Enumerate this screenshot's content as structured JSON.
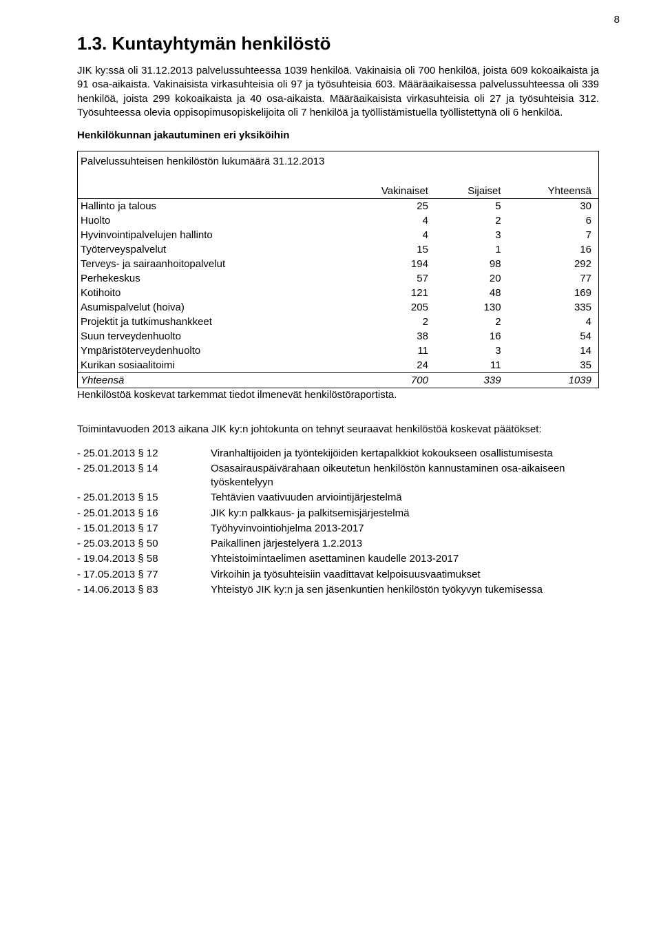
{
  "page_number": "8",
  "heading": "1.3. Kuntayhtymän henkilöstö",
  "paragraphs": {
    "p1": "JIK ky:ssä oli 31.12.2013 palvelussuhteessa 1039 henkilöä. Vakinaisia oli 700 henkilöä, joista 609 kokoaikaista ja 91 osa-aikaista. Vakinaisista virkasuhteisia oli 97 ja työsuhteisia 603. Määräaikaisessa palvelussuhteessa oli 339 henkilöä, joista 299 kokoaikaista ja 40 osa-aikaista. Määräaikaisista virkasuhteisia oli 27 ja työsuhteisia 312. Työsuhteessa olevia oppisopimusopiskelijoita oli 7 henkilöä ja työllistämistuella työllistettynä oli 6 henkilöä.",
    "subhead": "Henkilökunnan jakautuminen eri yksiköihin",
    "p2": "Henkilöstöä koskevat tarkemmat tiedot ilmenevät henkilöstöraportista.",
    "p3": "Toimintavuoden 2013 aikana JIK ky:n johtokunta on tehnyt seuraavat henkilöstöä koskevat päätökset:"
  },
  "table": {
    "caption": "Palvelussuhteisen henkilöstön lukumäärä 31.12.2013",
    "columns": [
      "",
      "Vakinaiset",
      "Sijaiset",
      "Yhteensä"
    ],
    "rows": [
      {
        "label": "Hallinto ja talous",
        "v": "25",
        "s": "5",
        "y": "30"
      },
      {
        "label": "Huolto",
        "v": "4",
        "s": "2",
        "y": "6"
      },
      {
        "label": "Hyvinvointipalvelujen hallinto",
        "v": "4",
        "s": "3",
        "y": "7"
      },
      {
        "label": "Työterveyspalvelut",
        "v": "15",
        "s": "1",
        "y": "16"
      },
      {
        "label": "Terveys- ja sairaanhoitopalvelut",
        "v": "194",
        "s": "98",
        "y": "292"
      },
      {
        "label": "Perhekeskus",
        "v": "57",
        "s": "20",
        "y": "77"
      },
      {
        "label": "Kotihoito",
        "v": "121",
        "s": "48",
        "y": "169"
      },
      {
        "label": "Asumispalvelut (hoiva)",
        "v": "205",
        "s": "130",
        "y": "335"
      },
      {
        "label": "Projektit ja tutkimushankkeet",
        "v": "2",
        "s": "2",
        "y": "4"
      },
      {
        "label": "Suun terveydenhuolto",
        "v": "38",
        "s": "16",
        "y": "54"
      },
      {
        "label": "Ympäristöterveydenhuolto",
        "v": "11",
        "s": "3",
        "y": "14"
      },
      {
        "label": "Kurikan sosiaalitoimi",
        "v": "24",
        "s": "11",
        "y": "35"
      }
    ],
    "total": {
      "label": "Yhteensä",
      "v": "700",
      "s": "339",
      "y": "1039"
    }
  },
  "decisions": [
    {
      "k": "- 25.01.2013 § 12",
      "t": "Viranhaltijoiden ja työntekijöiden kertapalkkiot kokoukseen osallistumisesta"
    },
    {
      "k": "- 25.01.2013 § 14",
      "t": "Osasairauspäivärahaan oikeutetun henkilöstön kannustaminen osa-aikaiseen työskentelyyn"
    },
    {
      "k": "- 25.01.2013 § 15",
      "t": "Tehtävien vaativuuden arviointijärjestelmä"
    },
    {
      "k": "- 25.01.2013 § 16",
      "t": "JIK ky:n palkkaus- ja palkitsemisjärjestelmä"
    },
    {
      "k": "- 15.01.2013 § 17",
      "t": "Työhyvinvointiohjelma 2013-2017"
    },
    {
      "k": "- 25.03.2013 § 50",
      "t": "Paikallinen järjestelyerä 1.2.2013"
    },
    {
      "k": "- 19.04.2013 § 58",
      "t": "Yhteistoimintaelimen asettaminen kaudelle 2013-2017"
    },
    {
      "k": "- 17.05.2013 § 77",
      "t": "Virkoihin ja työsuhteisiin vaadittavat kelpoisuusvaatimukset"
    },
    {
      "k": "- 14.06.2013 § 83",
      "t": "Yhteistyö JIK ky:n ja sen jäsenkuntien henkilöstön työkyvyn tukemisessa"
    }
  ]
}
